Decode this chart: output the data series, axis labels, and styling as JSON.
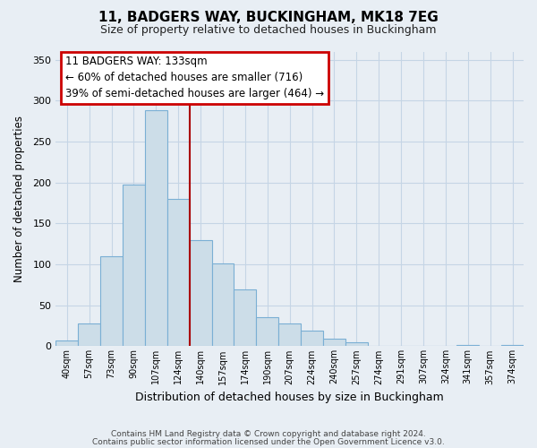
{
  "title": "11, BADGERS WAY, BUCKINGHAM, MK18 7EG",
  "subtitle": "Size of property relative to detached houses in Buckingham",
  "xlabel": "Distribution of detached houses by size in Buckingham",
  "ylabel": "Number of detached properties",
  "bar_labels": [
    "40sqm",
    "57sqm",
    "73sqm",
    "90sqm",
    "107sqm",
    "124sqm",
    "140sqm",
    "157sqm",
    "174sqm",
    "190sqm",
    "207sqm",
    "224sqm",
    "240sqm",
    "257sqm",
    "274sqm",
    "291sqm",
    "307sqm",
    "324sqm",
    "341sqm",
    "357sqm",
    "374sqm"
  ],
  "bar_heights": [
    7,
    28,
    110,
    197,
    288,
    180,
    130,
    101,
    69,
    35,
    28,
    19,
    9,
    5,
    0,
    0,
    0,
    0,
    2,
    0,
    2
  ],
  "bar_color": "#ccdde8",
  "bar_edge_color": "#7aafd4",
  "vline_color": "#aa0000",
  "annotation_title": "11 BADGERS WAY: 133sqm",
  "annotation_line1": "← 60% of detached houses are smaller (716)",
  "annotation_line2": "39% of semi-detached houses are larger (464) →",
  "annotation_box_color": "#cc0000",
  "ylim": [
    0,
    360
  ],
  "yticks": [
    0,
    50,
    100,
    150,
    200,
    250,
    300,
    350
  ],
  "footer1": "Contains HM Land Registry data © Crown copyright and database right 2024.",
  "footer2": "Contains public sector information licensed under the Open Government Licence v3.0.",
  "bg_color": "#e8eef4",
  "plot_bg_color": "#e8eef4",
  "grid_color": "#c5d5e5"
}
